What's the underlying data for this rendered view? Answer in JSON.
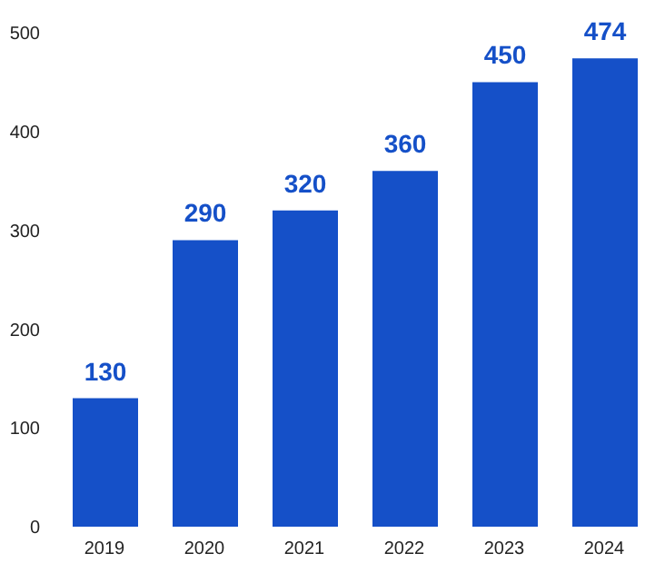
{
  "chart_data": {
    "type": "bar",
    "categories": [
      "2019",
      "2020",
      "2021",
      "2022",
      "2023",
      "2024"
    ],
    "values": [
      130,
      290,
      320,
      360,
      450,
      474
    ],
    "color": "#1550c8",
    "ylim": [
      0,
      500
    ],
    "yticks": [
      0,
      100,
      200,
      300,
      400,
      500
    ],
    "grid": false,
    "data_labels": true
  }
}
